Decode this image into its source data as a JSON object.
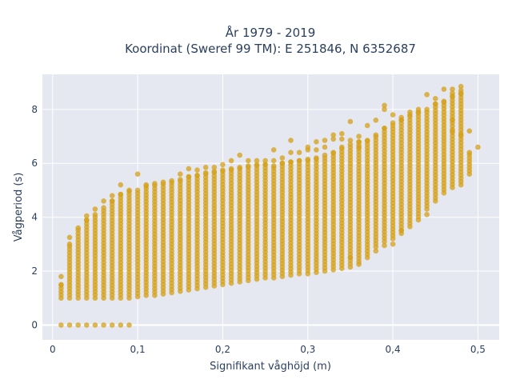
{
  "chart_data": {
    "type": "scatter",
    "title_line1": "År 1979 - 2019",
    "title_line2": "Koordinat (Sweref 99 TM): E 251846, N 6352687",
    "xlabel": "Signifikant våghöjd (m)",
    "ylabel": "Vågperiod (s)",
    "xlim": [
      -0.012,
      0.525
    ],
    "ylim": [
      -0.55,
      9.3
    ],
    "xticks": [
      0,
      0.1,
      0.2,
      0.3,
      0.4,
      0.5
    ],
    "xtick_labels": [
      "0",
      "0,1",
      "0,2",
      "0,3",
      "0,4",
      "0,5"
    ],
    "yticks": [
      0,
      2,
      4,
      6,
      8
    ],
    "ytick_labels": [
      "0",
      "2",
      "4",
      "6",
      "8"
    ],
    "grid": true,
    "marker_color": "#d4a017",
    "background_color": "#e5e8f1",
    "columns": [
      {
        "x": 0.01,
        "min": 1.0,
        "max": 1.5,
        "zero": true,
        "outliers": [
          1.8
        ]
      },
      {
        "x": 0.02,
        "min": 1.0,
        "max": 3.0,
        "zero": true,
        "outliers": [
          3.25
        ]
      },
      {
        "x": 0.03,
        "min": 1.0,
        "max": 3.6,
        "zero": true,
        "outliers": []
      },
      {
        "x": 0.04,
        "min": 1.0,
        "max": 3.9,
        "zero": true,
        "outliers": [
          4.05
        ]
      },
      {
        "x": 0.05,
        "min": 1.0,
        "max": 4.1,
        "zero": true,
        "outliers": [
          4.3
        ]
      },
      {
        "x": 0.06,
        "min": 1.0,
        "max": 4.35,
        "zero": true,
        "outliers": [
          4.6
        ]
      },
      {
        "x": 0.07,
        "min": 1.0,
        "max": 4.6,
        "zero": true,
        "outliers": [
          4.8
        ]
      },
      {
        "x": 0.08,
        "min": 1.0,
        "max": 4.85,
        "zero": true,
        "outliers": [
          5.2
        ]
      },
      {
        "x": 0.09,
        "min": 1.0,
        "max": 4.95,
        "zero": true,
        "outliers": [
          5.0
        ]
      },
      {
        "x": 0.1,
        "min": 1.05,
        "max": 5.0,
        "outliers": [
          5.6
        ]
      },
      {
        "x": 0.11,
        "min": 1.1,
        "max": 5.15,
        "outliers": [
          5.2
        ]
      },
      {
        "x": 0.12,
        "min": 1.1,
        "max": 5.25,
        "outliers": []
      },
      {
        "x": 0.13,
        "min": 1.15,
        "max": 5.3,
        "outliers": []
      },
      {
        "x": 0.14,
        "min": 1.2,
        "max": 5.35,
        "outliers": []
      },
      {
        "x": 0.15,
        "min": 1.25,
        "max": 5.4,
        "outliers": [
          5.6
        ]
      },
      {
        "x": 0.16,
        "min": 1.3,
        "max": 5.5,
        "outliers": [
          5.8
        ]
      },
      {
        "x": 0.17,
        "min": 1.35,
        "max": 5.55,
        "outliers": [
          5.75
        ]
      },
      {
        "x": 0.18,
        "min": 1.4,
        "max": 5.65,
        "outliers": [
          5.85
        ]
      },
      {
        "x": 0.19,
        "min": 1.45,
        "max": 5.7,
        "outliers": [
          5.85
        ]
      },
      {
        "x": 0.2,
        "min": 1.5,
        "max": 5.75,
        "outliers": [
          5.95
        ]
      },
      {
        "x": 0.21,
        "min": 1.55,
        "max": 5.8,
        "outliers": [
          6.1
        ]
      },
      {
        "x": 0.22,
        "min": 1.6,
        "max": 5.85,
        "outliers": [
          6.3
        ]
      },
      {
        "x": 0.23,
        "min": 1.65,
        "max": 5.9,
        "outliers": [
          6.1
        ]
      },
      {
        "x": 0.24,
        "min": 1.7,
        "max": 5.95,
        "outliers": [
          6.1
        ]
      },
      {
        "x": 0.25,
        "min": 1.75,
        "max": 5.95,
        "outliers": [
          6.1
        ]
      },
      {
        "x": 0.26,
        "min": 1.75,
        "max": 5.9,
        "outliers": [
          6.1,
          6.5
        ]
      },
      {
        "x": 0.27,
        "min": 1.8,
        "max": 6.0,
        "outliers": [
          6.2
        ]
      },
      {
        "x": 0.28,
        "min": 1.85,
        "max": 6.05,
        "outliers": [
          6.4,
          6.85
        ]
      },
      {
        "x": 0.29,
        "min": 1.9,
        "max": 6.1,
        "outliers": [
          6.4
        ]
      },
      {
        "x": 0.3,
        "min": 1.9,
        "max": 6.15,
        "outliers": [
          6.5,
          6.6
        ]
      },
      {
        "x": 0.31,
        "min": 1.95,
        "max": 6.2,
        "outliers": [
          6.5,
          6.8
        ]
      },
      {
        "x": 0.32,
        "min": 2.0,
        "max": 6.3,
        "outliers": [
          6.6,
          6.85
        ]
      },
      {
        "x": 0.33,
        "min": 2.05,
        "max": 6.4,
        "outliers": [
          6.9,
          7.05
        ]
      },
      {
        "x": 0.34,
        "min": 2.1,
        "max": 6.6,
        "outliers": [
          6.9,
          7.1
        ]
      },
      {
        "x": 0.35,
        "min": 2.15,
        "max": 6.7,
        "outliers": [
          6.85,
          7.55,
          2.5
        ]
      },
      {
        "x": 0.36,
        "min": 2.35,
        "max": 6.8,
        "outliers": [
          6.6,
          7.0,
          2.25
        ]
      },
      {
        "x": 0.37,
        "min": 2.5,
        "max": 6.85,
        "outliers": [
          7.4
        ]
      },
      {
        "x": 0.38,
        "min": 2.9,
        "max": 7.05,
        "outliers": [
          7.6,
          2.75
        ]
      },
      {
        "x": 0.39,
        "min": 3.1,
        "max": 7.3,
        "outliers": [
          8.0,
          8.15,
          2.95
        ]
      },
      {
        "x": 0.4,
        "min": 3.2,
        "max": 7.5,
        "outliers": [
          7.8,
          3.0
        ]
      },
      {
        "x": 0.41,
        "min": 3.4,
        "max": 7.6,
        "outliers": [
          7.7,
          3.5
        ]
      },
      {
        "x": 0.42,
        "min": 3.65,
        "max": 7.8,
        "outliers": [
          7.9
        ]
      },
      {
        "x": 0.43,
        "min": 3.9,
        "max": 7.9,
        "outliers": [
          8.0
        ]
      },
      {
        "x": 0.44,
        "min": 4.3,
        "max": 8.0,
        "outliers": [
          8.55,
          4.1
        ]
      },
      {
        "x": 0.45,
        "min": 4.6,
        "max": 8.2,
        "outliers": [
          8.4
        ]
      },
      {
        "x": 0.46,
        "min": 4.9,
        "max": 8.3,
        "outliers": [
          8.75
        ]
      },
      {
        "x": 0.47,
        "min": 5.1,
        "max": 8.5,
        "outliers": [
          8.75,
          8.6,
          7.6,
          7.2
        ]
      },
      {
        "x": 0.48,
        "min": 5.2,
        "max": 8.6,
        "outliers": [
          8.85,
          8.7,
          7.05
        ]
      },
      {
        "x": 0.49,
        "min": 5.6,
        "max": 6.4,
        "outliers": [
          7.2
        ]
      },
      {
        "x": 0.5,
        "min": 6.6,
        "max": 6.6,
        "outliers": []
      }
    ]
  }
}
